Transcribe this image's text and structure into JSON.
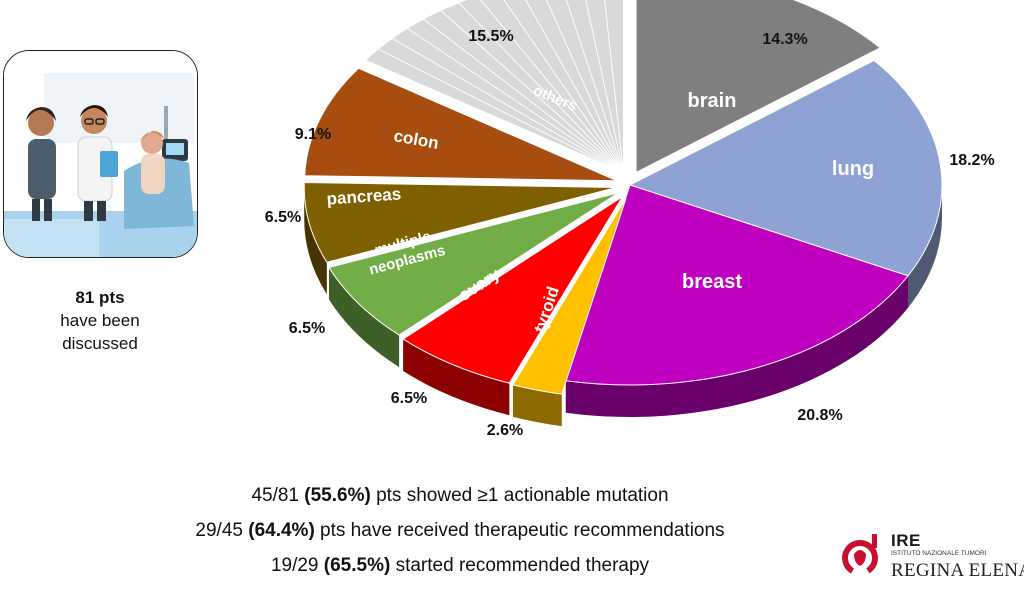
{
  "chart_data": {
    "type": "pie",
    "slices": [
      {
        "label": "brain",
        "value": 14.3,
        "pct_label": "14.3%",
        "color": "#7f7f7f",
        "explode": true
      },
      {
        "label": "lung",
        "value": 18.2,
        "pct_label": "18.2%",
        "color": "#8ea3d3",
        "explode": false
      },
      {
        "label": "breast",
        "value": 20.8,
        "pct_label": "20.8%",
        "color": "#c000c0",
        "explode": false
      },
      {
        "label": "tyroid",
        "value": 2.6,
        "pct_label": "2.6%",
        "color": "#ffc000",
        "explode": true
      },
      {
        "label": "ovary",
        "value": 6.5,
        "pct_label": "6.5%",
        "color": "#ff0000",
        "explode": true
      },
      {
        "label": "multiple neoplasms",
        "value": 6.5,
        "pct_label": "6.5%",
        "color": "#70ad47",
        "explode": true
      },
      {
        "label": "pancreas",
        "value": 6.5,
        "pct_label": "6.5%",
        "color": "#7f6000",
        "explode": true
      },
      {
        "label": "colon",
        "value": 9.1,
        "pct_label": "9.1%",
        "color": "#a64d0f",
        "explode": true
      },
      {
        "label": "others",
        "value": 15.5,
        "pct_label": "15.5%",
        "color": "#d9d9d9",
        "explode": true
      }
    ]
  },
  "summary": {
    "count": "81 pts",
    "line1": "have been",
    "line2": "discussed"
  },
  "stats": [
    {
      "pre": "45/81 ",
      "bold": "(55.6%)",
      "post": " pts showed ≥1 actionable mutation"
    },
    {
      "pre": "29/45 ",
      "bold": "(64.4%)",
      "post": " pts have received therapeutic recommendations"
    },
    {
      "pre": "19/29 ",
      "bold": "(65.5%)",
      "post": " started recommended therapy"
    }
  ],
  "logo": {
    "abbr": "IRE",
    "institute": "ISTITUTO NAZIONALE TUMORI",
    "name": "REGINA ELENA",
    "color": "#c8102e"
  }
}
